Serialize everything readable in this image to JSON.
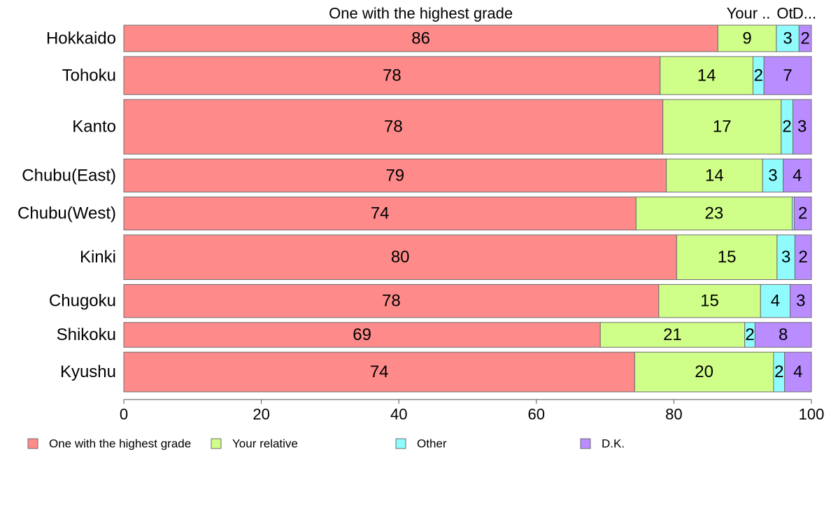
{
  "chart_data": {
    "type": "bar",
    "orientation": "horizontal",
    "stacked": true,
    "categories": [
      "Hokkaido",
      "Tohoku",
      "Kanto",
      "Chubu(East)",
      "Chubu(West)",
      "Kinki",
      "Chugoku",
      "Shikoku",
      "Kyushu"
    ],
    "bar_weights": [
      0.8,
      1.15,
      1.65,
      1.0,
      1.0,
      1.35,
      1.0,
      0.75,
      1.2
    ],
    "series": [
      {
        "name": "One with the highest grade",
        "color": "#ff8a8a",
        "values": [
          86.4,
          78.0,
          78.4,
          78.9,
          74.5,
          80.4,
          77.8,
          69.3,
          74.3
        ],
        "labels": [
          "86",
          "78",
          "78",
          "79",
          "74",
          "80",
          "78",
          "69",
          "74"
        ]
      },
      {
        "name": "Your relative",
        "color": "#cfff88",
        "values": [
          8.5,
          13.5,
          17.2,
          14.0,
          22.7,
          14.6,
          14.8,
          21.0,
          20.2
        ],
        "labels": [
          "9",
          "14",
          "17",
          "14",
          "23",
          "15",
          "15",
          "21",
          "20"
        ]
      },
      {
        "name": "Other",
        "color": "#8ffbfd",
        "values": [
          3.3,
          1.6,
          1.7,
          3.0,
          0.3,
          2.6,
          4.3,
          1.5,
          1.6
        ],
        "labels": [
          "3",
          "2",
          "2",
          "3",
          "",
          "3",
          "4",
          "2",
          "2"
        ]
      },
      {
        "name": "D.K.",
        "color": "#b98cff",
        "values": [
          1.8,
          6.9,
          2.7,
          4.1,
          2.5,
          2.4,
          3.1,
          8.2,
          3.9
        ],
        "labels": [
          "2",
          "7",
          "3",
          "4",
          "2",
          "2",
          "3",
          "8",
          "4"
        ]
      }
    ],
    "top_labels": [
      "One with the highest grade",
      "Your ..",
      "Ot",
      "D..."
    ],
    "x_ticks": [
      0,
      20,
      40,
      60,
      80,
      100
    ],
    "xlim": [
      0,
      100
    ],
    "xlabel": "",
    "ylabel": "",
    "title": "",
    "grid": false,
    "legend_position": "bottom"
  }
}
